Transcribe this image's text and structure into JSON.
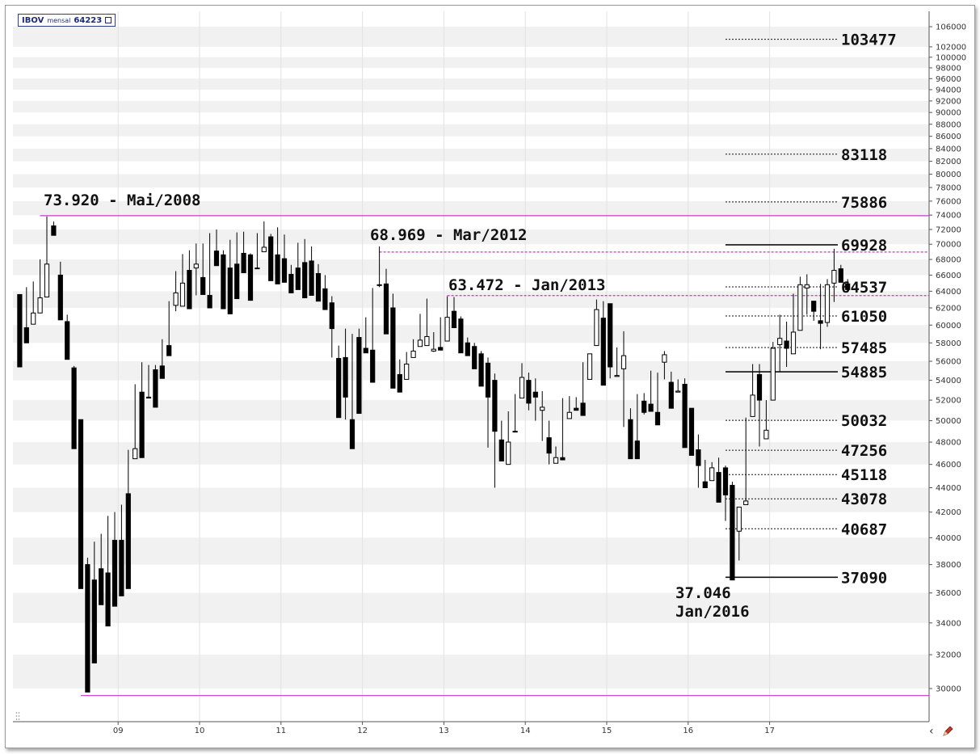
{
  "legend": {
    "symbol": "IBOV",
    "period": "mensal",
    "last": "64223"
  },
  "colors": {
    "up": "#ffffff",
    "down": "#000000",
    "magenta": "#cc33cc",
    "grid_band": "#f1f1f1"
  },
  "chart_data": {
    "type": "candlestick",
    "ylim": [
      28500,
      107500
    ],
    "y_ticks": [
      30000,
      32000,
      34000,
      36000,
      38000,
      40000,
      42000,
      44000,
      46000,
      48000,
      50000,
      52000,
      54000,
      56000,
      58000,
      60000,
      62000,
      64000,
      66000,
      68000,
      70000,
      72000,
      74000,
      76000,
      78000,
      80000,
      82000,
      84000,
      86000,
      88000,
      90000,
      92000,
      94000,
      96000,
      98000,
      100000,
      102000,
      106000
    ],
    "x_ticks": [
      "09",
      "10",
      "11",
      "12",
      "13",
      "14",
      "15",
      "16",
      "17"
    ],
    "x_tick_months": [
      15.5,
      27.5,
      39.5,
      51.5,
      63.5,
      75.5,
      87.5,
      99.5,
      111.5
    ],
    "x_range": [
      0,
      135
    ],
    "candles": [
      [
        1,
        63600,
        55400,
        60900,
        63000
      ],
      [
        2,
        59700,
        58000,
        63400,
        64500
      ],
      [
        3,
        60100,
        61400,
        61500,
        65200
      ],
      [
        4,
        61400,
        63200,
        63800,
        68000
      ],
      [
        5,
        63300,
        67400,
        72700,
        73800
      ],
      [
        6,
        72500,
        71200,
        72300,
        73100
      ],
      [
        7,
        66000,
        60600,
        66500,
        67700
      ],
      [
        8,
        60400,
        56200,
        61800,
        61200
      ],
      [
        9,
        55300,
        47400,
        56300,
        55500
      ],
      [
        10,
        50100,
        36300,
        50300,
        45500
      ],
      [
        11,
        38000,
        29800,
        37400,
        38500
      ],
      [
        12,
        36900,
        31500,
        37300,
        39700
      ],
      [
        13,
        37700,
        35200,
        38600,
        40300
      ],
      [
        14,
        37400,
        33800,
        39400,
        41700
      ],
      [
        15,
        39800,
        35100,
        40000,
        42000
      ],
      [
        16,
        39800,
        35800,
        42700,
        42600
      ],
      [
        17,
        43500,
        36300,
        44500,
        47300
      ],
      [
        18,
        46500,
        47400,
        52800,
        53600
      ],
      [
        19,
        52800,
        46600,
        53500,
        55900
      ],
      [
        20,
        52300,
        52200,
        54200,
        55600
      ],
      [
        21,
        55100,
        51300,
        53100,
        55600
      ],
      [
        22,
        55500,
        54200,
        57800,
        58400
      ],
      [
        23,
        57700,
        56600,
        62400,
        62800
      ],
      [
        24,
        62300,
        63800,
        61600,
        66500
      ],
      [
        25,
        62200,
        65000,
        66200,
        68700
      ],
      [
        26,
        66600,
        61900,
        68500,
        69200
      ],
      [
        27,
        66900,
        67400,
        63500,
        70100
      ],
      [
        28,
        65700,
        63600,
        67500,
        70100
      ],
      [
        29,
        63500,
        62000,
        70200,
        71500
      ],
      [
        30,
        69100,
        67200,
        67900,
        72000
      ],
      [
        31,
        68600,
        61900,
        66900,
        69200
      ],
      [
        32,
        66900,
        61300,
        68300,
        70600
      ],
      [
        33,
        67400,
        63100,
        68800,
        71600
      ],
      [
        34,
        68800,
        66300,
        69000,
        71700
      ],
      [
        35,
        68600,
        62900,
        67000,
        68800
      ],
      [
        36,
        66900,
        66900,
        69000,
        71500
      ],
      [
        37,
        69000,
        69600,
        71000,
        73100
      ],
      [
        38,
        71000,
        65300,
        67300,
        71400
      ],
      [
        39,
        68600,
        64900,
        71600,
        72300
      ],
      [
        40,
        68100,
        65100,
        66300,
        71300
      ],
      [
        41,
        66100,
        63800,
        65800,
        67300
      ],
      [
        42,
        66900,
        64200,
        67100,
        70200
      ],
      [
        43,
        67600,
        63200,
        67900,
        70700
      ],
      [
        44,
        67800,
        63500,
        65900,
        69700
      ],
      [
        45,
        66200,
        62800,
        64800,
        67400
      ],
      [
        46,
        64300,
        61800,
        62600,
        66000
      ],
      [
        47,
        62600,
        59600,
        56400,
        63400
      ],
      [
        48,
        56300,
        50300,
        57700,
        57700
      ],
      [
        49,
        56400,
        52300,
        50100,
        59600
      ],
      [
        50,
        50100,
        47400,
        58600,
        59000
      ],
      [
        51,
        58600,
        50700,
        57900,
        59600
      ],
      [
        52,
        57400,
        56900,
        58000,
        60900
      ],
      [
        53,
        57200,
        53800,
        63700,
        64400
      ],
      [
        54,
        64800,
        64700,
        64500,
        69700
      ],
      [
        55,
        64900,
        59000,
        62600,
        66800
      ],
      [
        56,
        62000,
        53200,
        57400,
        63700
      ],
      [
        57,
        54600,
        52800,
        55500,
        56200
      ],
      [
        58,
        54100,
        55700,
        57600,
        57000
      ],
      [
        59,
        56400,
        57100,
        57800,
        58400
      ],
      [
        60,
        57600,
        58300,
        59000,
        61300
      ],
      [
        61,
        57700,
        58700,
        61300,
        63100
      ],
      [
        62,
        57100,
        57300,
        57000,
        59200
      ],
      [
        63,
        57500,
        57200,
        58200,
        60900
      ],
      [
        64,
        58200,
        60900,
        60400,
        63400
      ],
      [
        65,
        61600,
        59700,
        61300,
        63300
      ],
      [
        66,
        60700,
        56900,
        59600,
        61000
      ],
      [
        67,
        58000,
        56600,
        57000,
        58600
      ],
      [
        68,
        57600,
        55200,
        55500,
        58000
      ],
      [
        69,
        56800,
        53400,
        55900,
        57100
      ],
      [
        70,
        55800,
        52300,
        47500,
        56400
      ],
      [
        71,
        54000,
        49000,
        44000,
        54700
      ],
      [
        72,
        48200,
        46300,
        47600,
        50000
      ],
      [
        73,
        46000,
        48000,
        48800,
        50900
      ],
      [
        74,
        49000,
        49000,
        52000,
        52600
      ],
      [
        75,
        52200,
        54300,
        53300,
        55800
      ],
      [
        76,
        54000,
        51700,
        51000,
        54800
      ],
      [
        77,
        52800,
        52300,
        50000,
        54200
      ],
      [
        78,
        51000,
        51300,
        48100,
        52900
      ],
      [
        79,
        48400,
        47000,
        46000,
        50000
      ],
      [
        80,
        46100,
        46600,
        46900,
        47600
      ],
      [
        81,
        46600,
        46400,
        50800,
        52200
      ],
      [
        82,
        50200,
        50800,
        51300,
        52400
      ],
      [
        83,
        51200,
        51000,
        51400,
        52300
      ],
      [
        84,
        51700,
        50500,
        53700,
        55900
      ],
      [
        85,
        54100,
        56800,
        57500,
        56800
      ],
      [
        86,
        57700,
        61800,
        61400,
        63000
      ],
      [
        87,
        60800,
        53500,
        62500,
        62800
      ],
      [
        88,
        62500,
        55400,
        54200,
        55600
      ],
      [
        89,
        54400,
        54500,
        55200,
        57500
      ],
      [
        90,
        55200,
        56600,
        49400,
        59300
      ],
      [
        91,
        50100,
        46500,
        48800,
        51200
      ],
      [
        92,
        48100,
        46500,
        52100,
        52600
      ],
      [
        93,
        51900,
        50800,
        50600,
        52700
      ],
      [
        94,
        51600,
        50900,
        51800,
        55000
      ],
      [
        95,
        50800,
        49600,
        55000,
        54800
      ],
      [
        96,
        55900,
        56700,
        54100,
        57100
      ],
      [
        97,
        53800,
        51200,
        52500,
        54900
      ],
      [
        98,
        52800,
        52900,
        54700,
        54100
      ],
      [
        99,
        53600,
        47500,
        51000,
        54200
      ],
      [
        100,
        51200,
        46800,
        47500,
        51200
      ],
      [
        101,
        47300,
        45900,
        44000,
        48700
      ],
      [
        102,
        44500,
        44000,
        44500,
        46400
      ],
      [
        103,
        44600,
        45700,
        46000,
        46200
      ],
      [
        104,
        45300,
        42800,
        45300,
        46600
      ],
      [
        105,
        45700,
        43400,
        41300,
        45900
      ],
      [
        106,
        44200,
        36900,
        38700,
        44500
      ],
      [
        107,
        40500,
        42400,
        38300,
        41000
      ],
      [
        108,
        42600,
        42900,
        49800,
        50300
      ],
      [
        109,
        50400,
        52500,
        54500,
        55700
      ],
      [
        110,
        54600,
        52000,
        47600,
        55700
      ],
      [
        111,
        48300,
        49100,
        48900,
        52000
      ],
      [
        112,
        52000,
        57400,
        57900,
        58100
      ],
      [
        113,
        57800,
        58500,
        54900,
        61200
      ],
      [
        114,
        58200,
        57400,
        55400,
        60400
      ],
      [
        115,
        56800,
        59200,
        58300,
        63700
      ],
      [
        116,
        59400,
        64800,
        60700,
        65800
      ],
      [
        117,
        64400,
        64800,
        61200,
        66100
      ],
      [
        118,
        62800,
        61600,
        60500,
        62800
      ],
      [
        119,
        60500,
        60200,
        57300,
        64900
      ],
      [
        120,
        60300,
        64800,
        59800,
        65500
      ],
      [
        121,
        65000,
        66600,
        62700,
        69400
      ],
      [
        122,
        66800,
        65100,
        65600,
        67300
      ],
      [
        123,
        64900,
        64200,
        63900,
        65500
      ]
    ],
    "horizontal_lines": [
      {
        "value": 73920,
        "style": "solid-magenta",
        "from": 4
      },
      {
        "value": 29600,
        "style": "solid-magenta",
        "from": 10
      },
      {
        "value": 68969,
        "style": "dashed-magenta",
        "from": 54
      },
      {
        "value": 63472,
        "style": "dashed-magenta",
        "from": 64
      }
    ],
    "levels": [
      {
        "label": "103477",
        "value": 103477,
        "style": "dotted"
      },
      {
        "label": "83118",
        "value": 83118,
        "style": "dotted"
      },
      {
        "label": "75886",
        "value": 75886,
        "style": "dotted"
      },
      {
        "label": "69928",
        "value": 69928,
        "style": "solid"
      },
      {
        "label": "64537",
        "value": 64537,
        "style": "dotted"
      },
      {
        "label": "61050",
        "value": 61050,
        "style": "dotted"
      },
      {
        "label": "57485",
        "value": 57485,
        "style": "dotted"
      },
      {
        "label": "54885",
        "value": 54885,
        "style": "solid"
      },
      {
        "label": "50032",
        "value": 50032,
        "style": "dotted"
      },
      {
        "label": "47256",
        "value": 47256,
        "style": "dotted"
      },
      {
        "label": "45118",
        "value": 45118,
        "style": "dotted"
      },
      {
        "label": "43078",
        "value": 43078,
        "style": "dotted"
      },
      {
        "label": "40687",
        "value": 40687,
        "style": "dotted"
      },
      {
        "label": "37090",
        "value": 37090,
        "style": "solid"
      }
    ],
    "annotations": [
      {
        "text": "73.920 - Mai/2008",
        "month": 4,
        "value": 73920
      },
      {
        "text": "68.969 - Mar/2012",
        "month": 50,
        "value": 68969
      },
      {
        "text": "63.472 - Jan/2013",
        "month": 61,
        "value": 63472
      },
      {
        "text": "37.046",
        "month": 106,
        "value": 37046
      },
      {
        "text": "Jan/2016",
        "month": 106,
        "value": 37046
      }
    ]
  }
}
